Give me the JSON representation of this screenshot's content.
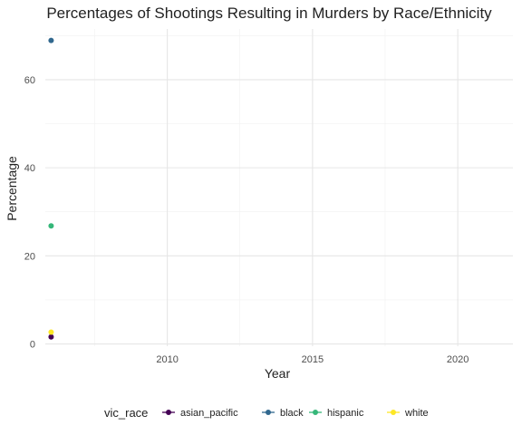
{
  "chart_data": {
    "type": "scatter",
    "title": "Percentages of Shootings Resulting in Murders by Race/Ethnicity",
    "xlabel": "Year",
    "ylabel": "Percentage",
    "xlim": [
      2005.8,
      2021.9
    ],
    "ylim": [
      -0.5,
      71.5
    ],
    "x_ticks": [
      2010,
      2015,
      2020
    ],
    "y_ticks": [
      0,
      20,
      40,
      60
    ],
    "grid": true,
    "legend_title": "vic_race",
    "legend_position": "bottom",
    "series": [
      {
        "name": "asian_pacific",
        "color": "#440154",
        "points": [
          {
            "x": 2006,
            "y": 1.6
          }
        ]
      },
      {
        "name": "black",
        "color": "#31688E",
        "points": [
          {
            "x": 2006,
            "y": 68.9
          }
        ]
      },
      {
        "name": "hispanic",
        "color": "#35B779",
        "points": [
          {
            "x": 2006,
            "y": 26.8
          }
        ]
      },
      {
        "name": "white",
        "color": "#FDE725",
        "points": [
          {
            "x": 2006,
            "y": 2.7
          }
        ]
      }
    ]
  }
}
